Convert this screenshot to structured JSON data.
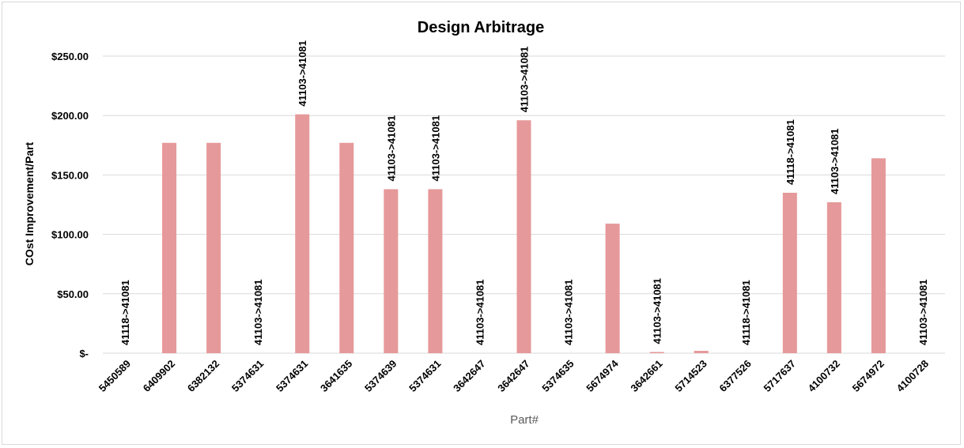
{
  "chart_data": {
    "type": "bar",
    "title": "Design Arbitrage",
    "xlabel": "Part#",
    "ylabel": "COst Improvement/Part",
    "ylim": [
      0,
      250
    ],
    "yticks": [
      0,
      50,
      100,
      150,
      200,
      250
    ],
    "ytick_labels": [
      "$-",
      "$50.00",
      "$100.00",
      "$150.00",
      "$200.00",
      "$250.00"
    ],
    "grid": true,
    "legend": "none",
    "bar_color": "#e6999a",
    "categories": [
      "5450589",
      "6409902",
      "6382132",
      "5374631",
      "5374631",
      "3641635",
      "5374639",
      "5374631",
      "3642647",
      "3642647",
      "5374635",
      "5674974",
      "3642661",
      "5714523",
      "6377526",
      "5717637",
      "4100732",
      "5674972",
      "4100728"
    ],
    "values": [
      0,
      177,
      177,
      0,
      201,
      177,
      138,
      138,
      0,
      196,
      0,
      109,
      1,
      2,
      0,
      135,
      127,
      164,
      0
    ],
    "data_labels": [
      "41118->41081",
      "",
      "",
      "41103->41081",
      "41103->41081",
      "",
      "41103->41081",
      "41103->41081",
      "41103->41081",
      "41103->41081",
      "41103->41081",
      "",
      "41103->41081",
      "",
      "41118->41081",
      "41118->41081",
      "41103->41081",
      "",
      "41103->41081"
    ]
  }
}
